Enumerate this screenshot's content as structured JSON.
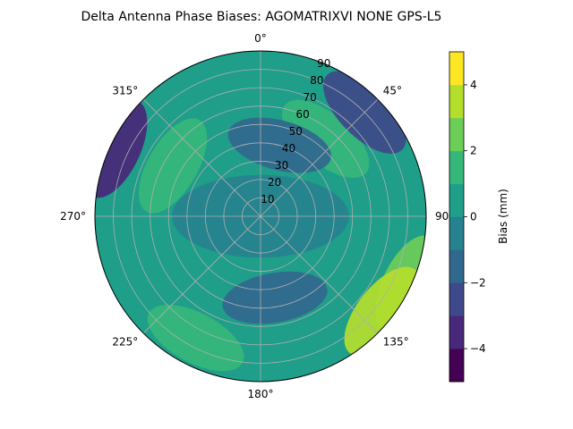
{
  "chart_data": {
    "type": "polar-contour",
    "title": "Delta Antenna Phase Biases: AGOMATRIXVI     NONE GPS-L5",
    "angular_axis": {
      "direction": "clockwise",
      "zero_location": "top",
      "tick_labels": [
        "0°",
        "45°",
        "90",
        "135°",
        "180°",
        "225°",
        "270°",
        "315°"
      ],
      "tick_angles_deg": [
        0,
        45,
        90,
        135,
        180,
        225,
        270,
        315
      ]
    },
    "radial_axis": {
      "quantity": "zenith angle",
      "range": [
        0,
        90
      ],
      "ticks": [
        10,
        20,
        30,
        40,
        50,
        60,
        70,
        80,
        90
      ],
      "tick_labels": [
        "10",
        "20",
        "30",
        "40",
        "50",
        "60",
        "70",
        "80",
        "90"
      ]
    },
    "grid": true,
    "colorbar": {
      "label": "Bias (mm)",
      "colormap": "viridis",
      "levels": [
        -5,
        -4,
        -3,
        -2,
        -1,
        0,
        1,
        2,
        3,
        4,
        5
      ],
      "tick_values": [
        -4,
        -2,
        0,
        2,
        4
      ],
      "tick_labels": [
        "−4",
        "−2",
        "0",
        "2",
        "4"
      ],
      "colors": [
        "#440154",
        "#482878",
        "#3e4989",
        "#31688e",
        "#26828e",
        "#1f9e89",
        "#35b779",
        "#6dcd59",
        "#b4de2c",
        "#fde725"
      ]
    },
    "field_features": [
      {
        "band": [
          -1,
          0
        ],
        "azimuth_deg": 0,
        "zenith_deg": 0,
        "extent_deg": 30,
        "description": "center"
      },
      {
        "band": [
          1,
          2
        ],
        "azimuth_deg": 40,
        "zenith_deg": 55,
        "description": "NE lobe"
      },
      {
        "band": [
          1,
          2
        ],
        "azimuth_deg": 300,
        "zenith_deg": 55,
        "description": "NW lobe"
      },
      {
        "band": [
          -2,
          -1
        ],
        "azimuth_deg": 15,
        "zenith_deg": 40,
        "description": "N band"
      },
      {
        "band": [
          -3,
          -2
        ],
        "azimuth_deg": 45,
        "zenith_deg": 80,
        "description": "NE edge"
      },
      {
        "band": [
          -4,
          -3
        ],
        "azimuth_deg": 295,
        "zenith_deg": 87,
        "description": "W edge"
      },
      {
        "band": [
          -2,
          -1
        ],
        "azimuth_deg": 170,
        "zenith_deg": 45,
        "description": "S ring"
      },
      {
        "band": [
          2,
          3
        ],
        "azimuth_deg": 115,
        "zenith_deg": 88,
        "description": "E edge"
      },
      {
        "band": [
          3,
          4
        ],
        "azimuth_deg": 128,
        "zenith_deg": 84,
        "description": "SE edge"
      },
      {
        "band": [
          1,
          2
        ],
        "azimuth_deg": 208,
        "zenith_deg": 75,
        "description": "SW lobe"
      }
    ]
  }
}
